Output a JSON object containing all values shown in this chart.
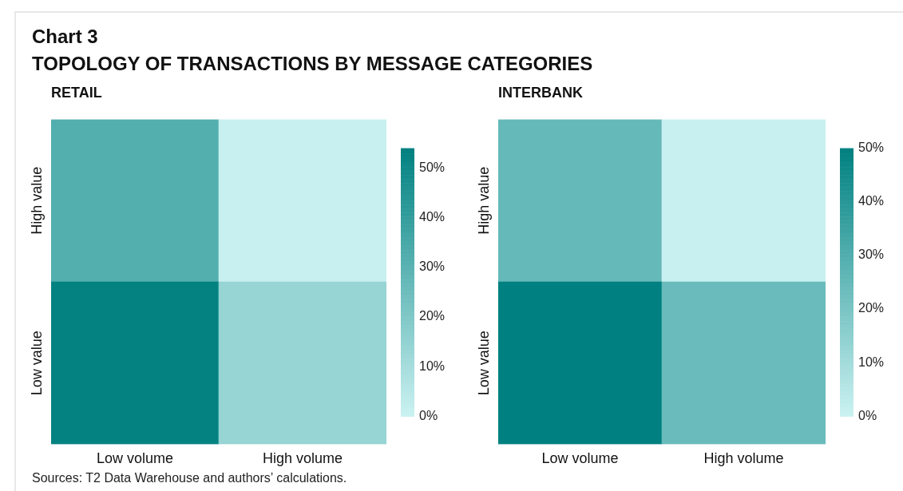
{
  "chart_data": [
    {
      "type": "other",
      "title": "Chart 3",
      "subtitle": "TOPOLOGY OF TRANSACTIONS BY MESSAGE CATEGORIES",
      "annotations": [
        "Sources: T2 Data Warehouse and authors’ calculations."
      ]
    },
    {
      "type": "heatmap",
      "title": "RETAIL",
      "categories": [
        "Low volume",
        "High volume"
      ],
      "y_categories": [
        "High value",
        "Low value"
      ],
      "cells": [
        [
          32,
          1
        ],
        [
          53,
          14
        ]
      ],
      "clim": [
        0,
        54
      ],
      "cticks": [
        {
          "value": 0,
          "label": "0%"
        },
        {
          "value": 10,
          "label": "10%"
        },
        {
          "value": 20,
          "label": "20%"
        },
        {
          "value": 30,
          "label": "30%"
        },
        {
          "value": 40,
          "label": "40%"
        },
        {
          "value": 50,
          "label": "50%"
        }
      ]
    },
    {
      "type": "heatmap",
      "title": "INTERBANK",
      "categories": [
        "Low volume",
        "High volume"
      ],
      "y_categories": [
        "High value",
        "Low value"
      ],
      "cells": [
        [
          25,
          1
        ],
        [
          50,
          24
        ]
      ],
      "clim": [
        0,
        50
      ],
      "cticks": [
        {
          "value": 0,
          "label": "0%"
        },
        {
          "value": 10,
          "label": "10%"
        },
        {
          "value": 20,
          "label": "20%"
        },
        {
          "value": 30,
          "label": "30%"
        },
        {
          "value": 40,
          "label": "40%"
        },
        {
          "value": 50,
          "label": "50%"
        }
      ]
    }
  ]
}
